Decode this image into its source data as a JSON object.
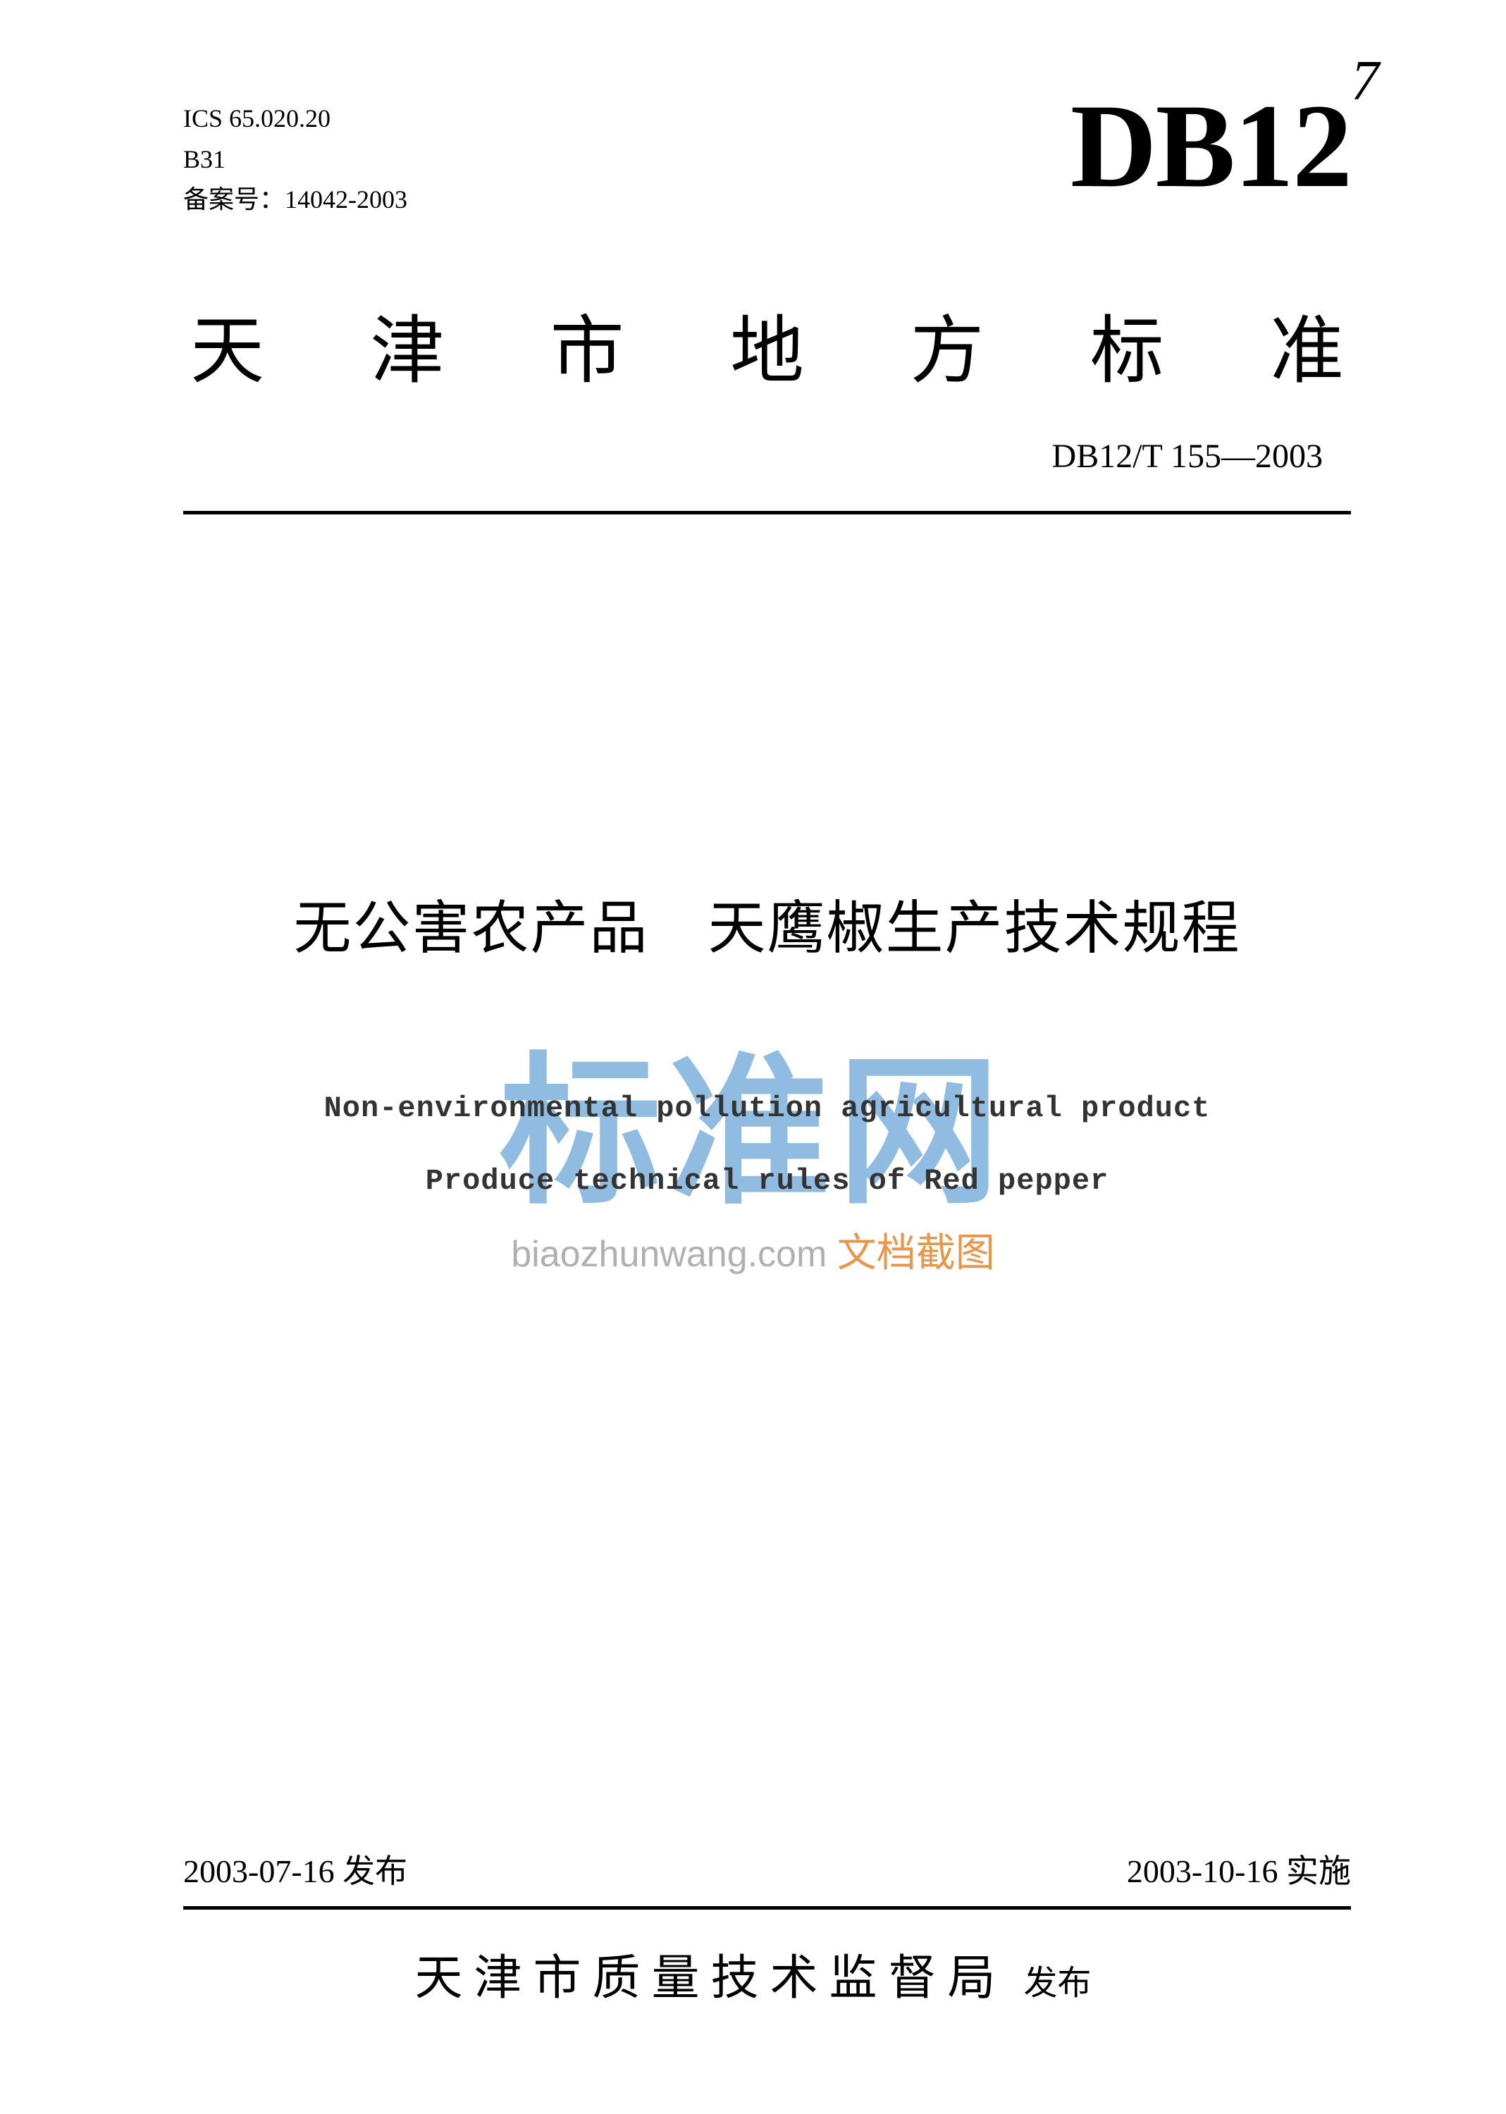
{
  "top_mark": "7",
  "header": {
    "ics": "ICS 65.020.20",
    "classification": "B31",
    "record_number": "备案号：14042-2003",
    "db_code": "DB12"
  },
  "region_title": {
    "c1": "天",
    "c2": "津",
    "c3": "市",
    "c4": "地",
    "c5": "方",
    "c6": "标",
    "c7": "准"
  },
  "standard_number": "DB12/T 155—2003",
  "title_cn": "无公害农产品　天鹰椒生产技术规程",
  "title_en": {
    "line1": "Non-environmental pollution agricultural product",
    "line2": "Produce technical rules of Red pepper"
  },
  "watermark": {
    "big": "标准网",
    "url": "biaozhunwang.com",
    "tag": "文档截图"
  },
  "dates": {
    "issue": "2003-07-16 发布",
    "effective": "2003-10-16 实施"
  },
  "publisher": {
    "name": "天津市质量技术监督局",
    "suffix": "发布"
  },
  "colors": {
    "text": "#000000",
    "background": "#ffffff",
    "watermark_blue": "#8fbce0",
    "watermark_gray": "#b0b0b0",
    "watermark_orange": "#e8974a"
  }
}
